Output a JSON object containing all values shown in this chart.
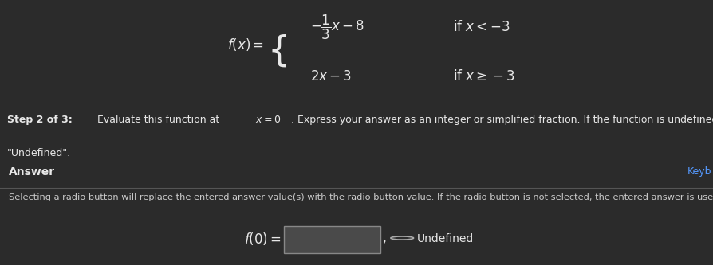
{
  "bg_color": "#2b2b2b",
  "top_section_bg": "#2b2b2b",
  "bottom_section_bg": "#383838",
  "divider_color": "#555555",
  "text_color": "#e8e8e8",
  "muted_text_color": "#cccccc",
  "blue_text_color": "#5599ff",
  "answer_label": "Answer",
  "keyb_label": "Keyb",
  "selecting_text": "Selecting a radio button will replace the entered answer value(s) with the radio button value. If the radio button is not selected, the entered answer is used.",
  "f0_label": "f(0) =",
  "undefined_label": "Undefined"
}
